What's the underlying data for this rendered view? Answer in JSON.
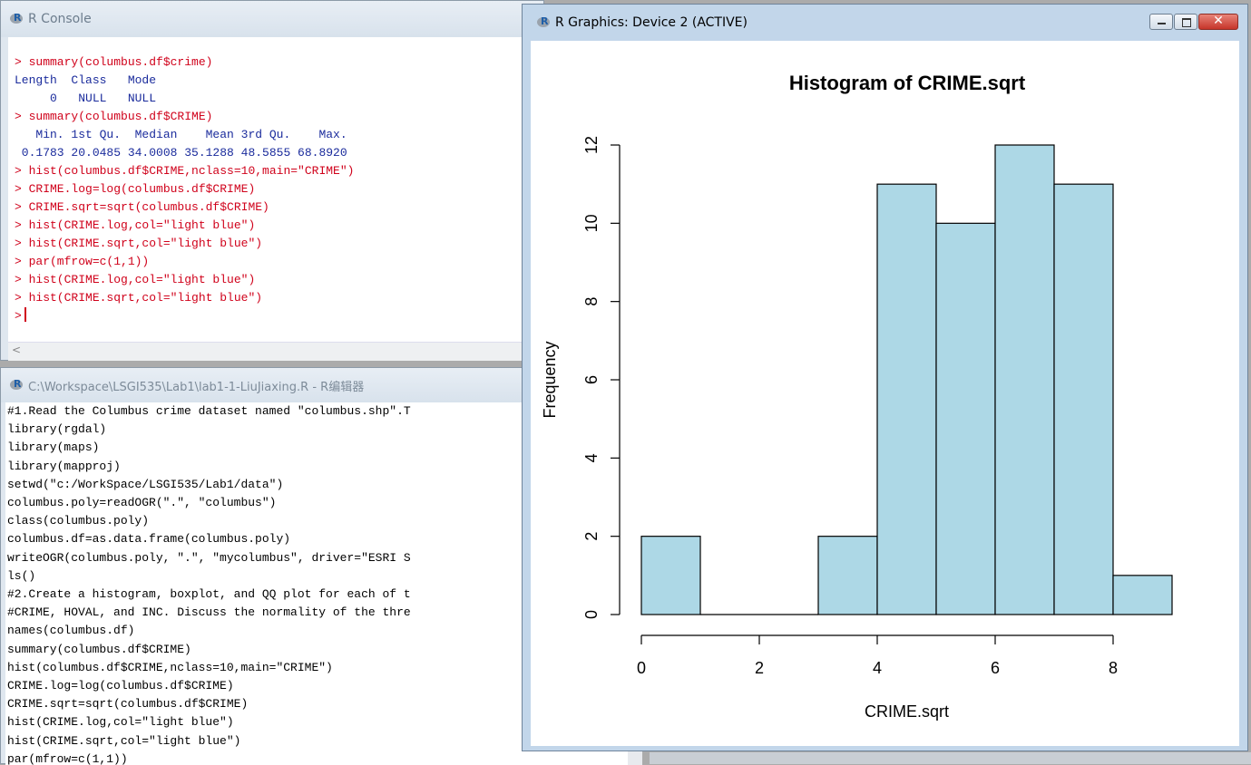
{
  "console": {
    "title": "R Console",
    "lines": [
      {
        "type": "in",
        "text": "> summary(columbus.df$crime)"
      },
      {
        "type": "out",
        "text": "Length  Class   Mode"
      },
      {
        "type": "out",
        "text": "     0   NULL   NULL"
      },
      {
        "type": "in",
        "text": "> summary(columbus.df$CRIME)"
      },
      {
        "type": "out",
        "text": "   Min. 1st Qu.  Median    Mean 3rd Qu.    Max."
      },
      {
        "type": "out",
        "text": " 0.1783 20.0485 34.0008 35.1288 48.5855 68.8920"
      },
      {
        "type": "in",
        "text": "> hist(columbus.df$CRIME,nclass=10,main=\"CRIME\")"
      },
      {
        "type": "in",
        "text": "> CRIME.log=log(columbus.df$CRIME)"
      },
      {
        "type": "in",
        "text": "> CRIME.sqrt=sqrt(columbus.df$CRIME)"
      },
      {
        "type": "in",
        "text": "> hist(CRIME.log,col=\"light blue\")"
      },
      {
        "type": "in",
        "text": "> hist(CRIME.sqrt,col=\"light blue\")"
      },
      {
        "type": "in",
        "text": "> par(mfrow=c(1,1))"
      },
      {
        "type": "in",
        "text": "> hist(CRIME.log,col=\"light blue\")"
      },
      {
        "type": "in",
        "text": "> hist(CRIME.sqrt,col=\"light blue\")"
      },
      {
        "type": "prompt",
        "text": ">"
      }
    ],
    "scroll_left": "<"
  },
  "editor": {
    "title": "C:\\Workspace\\LSGI535\\Lab1\\lab1-1-LiuJiaxing.R - R编辑器",
    "lines": [
      "#1.Read the Columbus crime dataset named \"columbus.shp\".T",
      "library(rgdal)",
      "library(maps)",
      "library(mapproj)",
      "setwd(\"c:/WorkSpace/LSGI535/Lab1/data\")",
      "columbus.poly=readOGR(\".\", \"columbus\")",
      "class(columbus.poly)",
      "columbus.df=as.data.frame(columbus.poly)",
      "writeOGR(columbus.poly, \".\", \"mycolumbus\", driver=\"ESRI S",
      "ls()",
      "#2.Create a histogram, boxplot, and QQ plot for each of t",
      "#CRIME, HOVAL, and INC. Discuss the normality of the thre",
      "names(columbus.df)",
      "summary(columbus.df$CRIME)",
      "hist(columbus.df$CRIME,nclass=10,main=\"CRIME\")",
      "CRIME.log=log(columbus.df$CRIME)",
      "CRIME.sqrt=sqrt(columbus.df$CRIME)",
      "hist(CRIME.log,col=\"light blue\")",
      "hist(CRIME.sqrt,col=\"light blue\")",
      "par(mfrow=c(1,1))"
    ]
  },
  "graphics": {
    "title": "R Graphics: Device 2 (ACTIVE)",
    "close_glyph": "✕"
  },
  "chart_data": {
    "type": "bar",
    "title": "Histogram of CRIME.sqrt",
    "xlabel": "CRIME.sqrt",
    "ylabel": "Frequency",
    "bins": [
      [
        0,
        1
      ],
      [
        1,
        2
      ],
      [
        2,
        3
      ],
      [
        3,
        4
      ],
      [
        4,
        5
      ],
      [
        5,
        6
      ],
      [
        6,
        7
      ],
      [
        7,
        8
      ],
      [
        8,
        9
      ]
    ],
    "values": [
      2,
      0,
      0,
      2,
      11,
      10,
      12,
      11,
      1
    ],
    "xticks": [
      0,
      2,
      4,
      6,
      8
    ],
    "yticks": [
      0,
      2,
      4,
      6,
      8,
      10,
      12
    ],
    "xlim": [
      0,
      9
    ],
    "ylim": [
      0,
      12
    ],
    "bar_color": "#add8e6",
    "grid": false
  }
}
